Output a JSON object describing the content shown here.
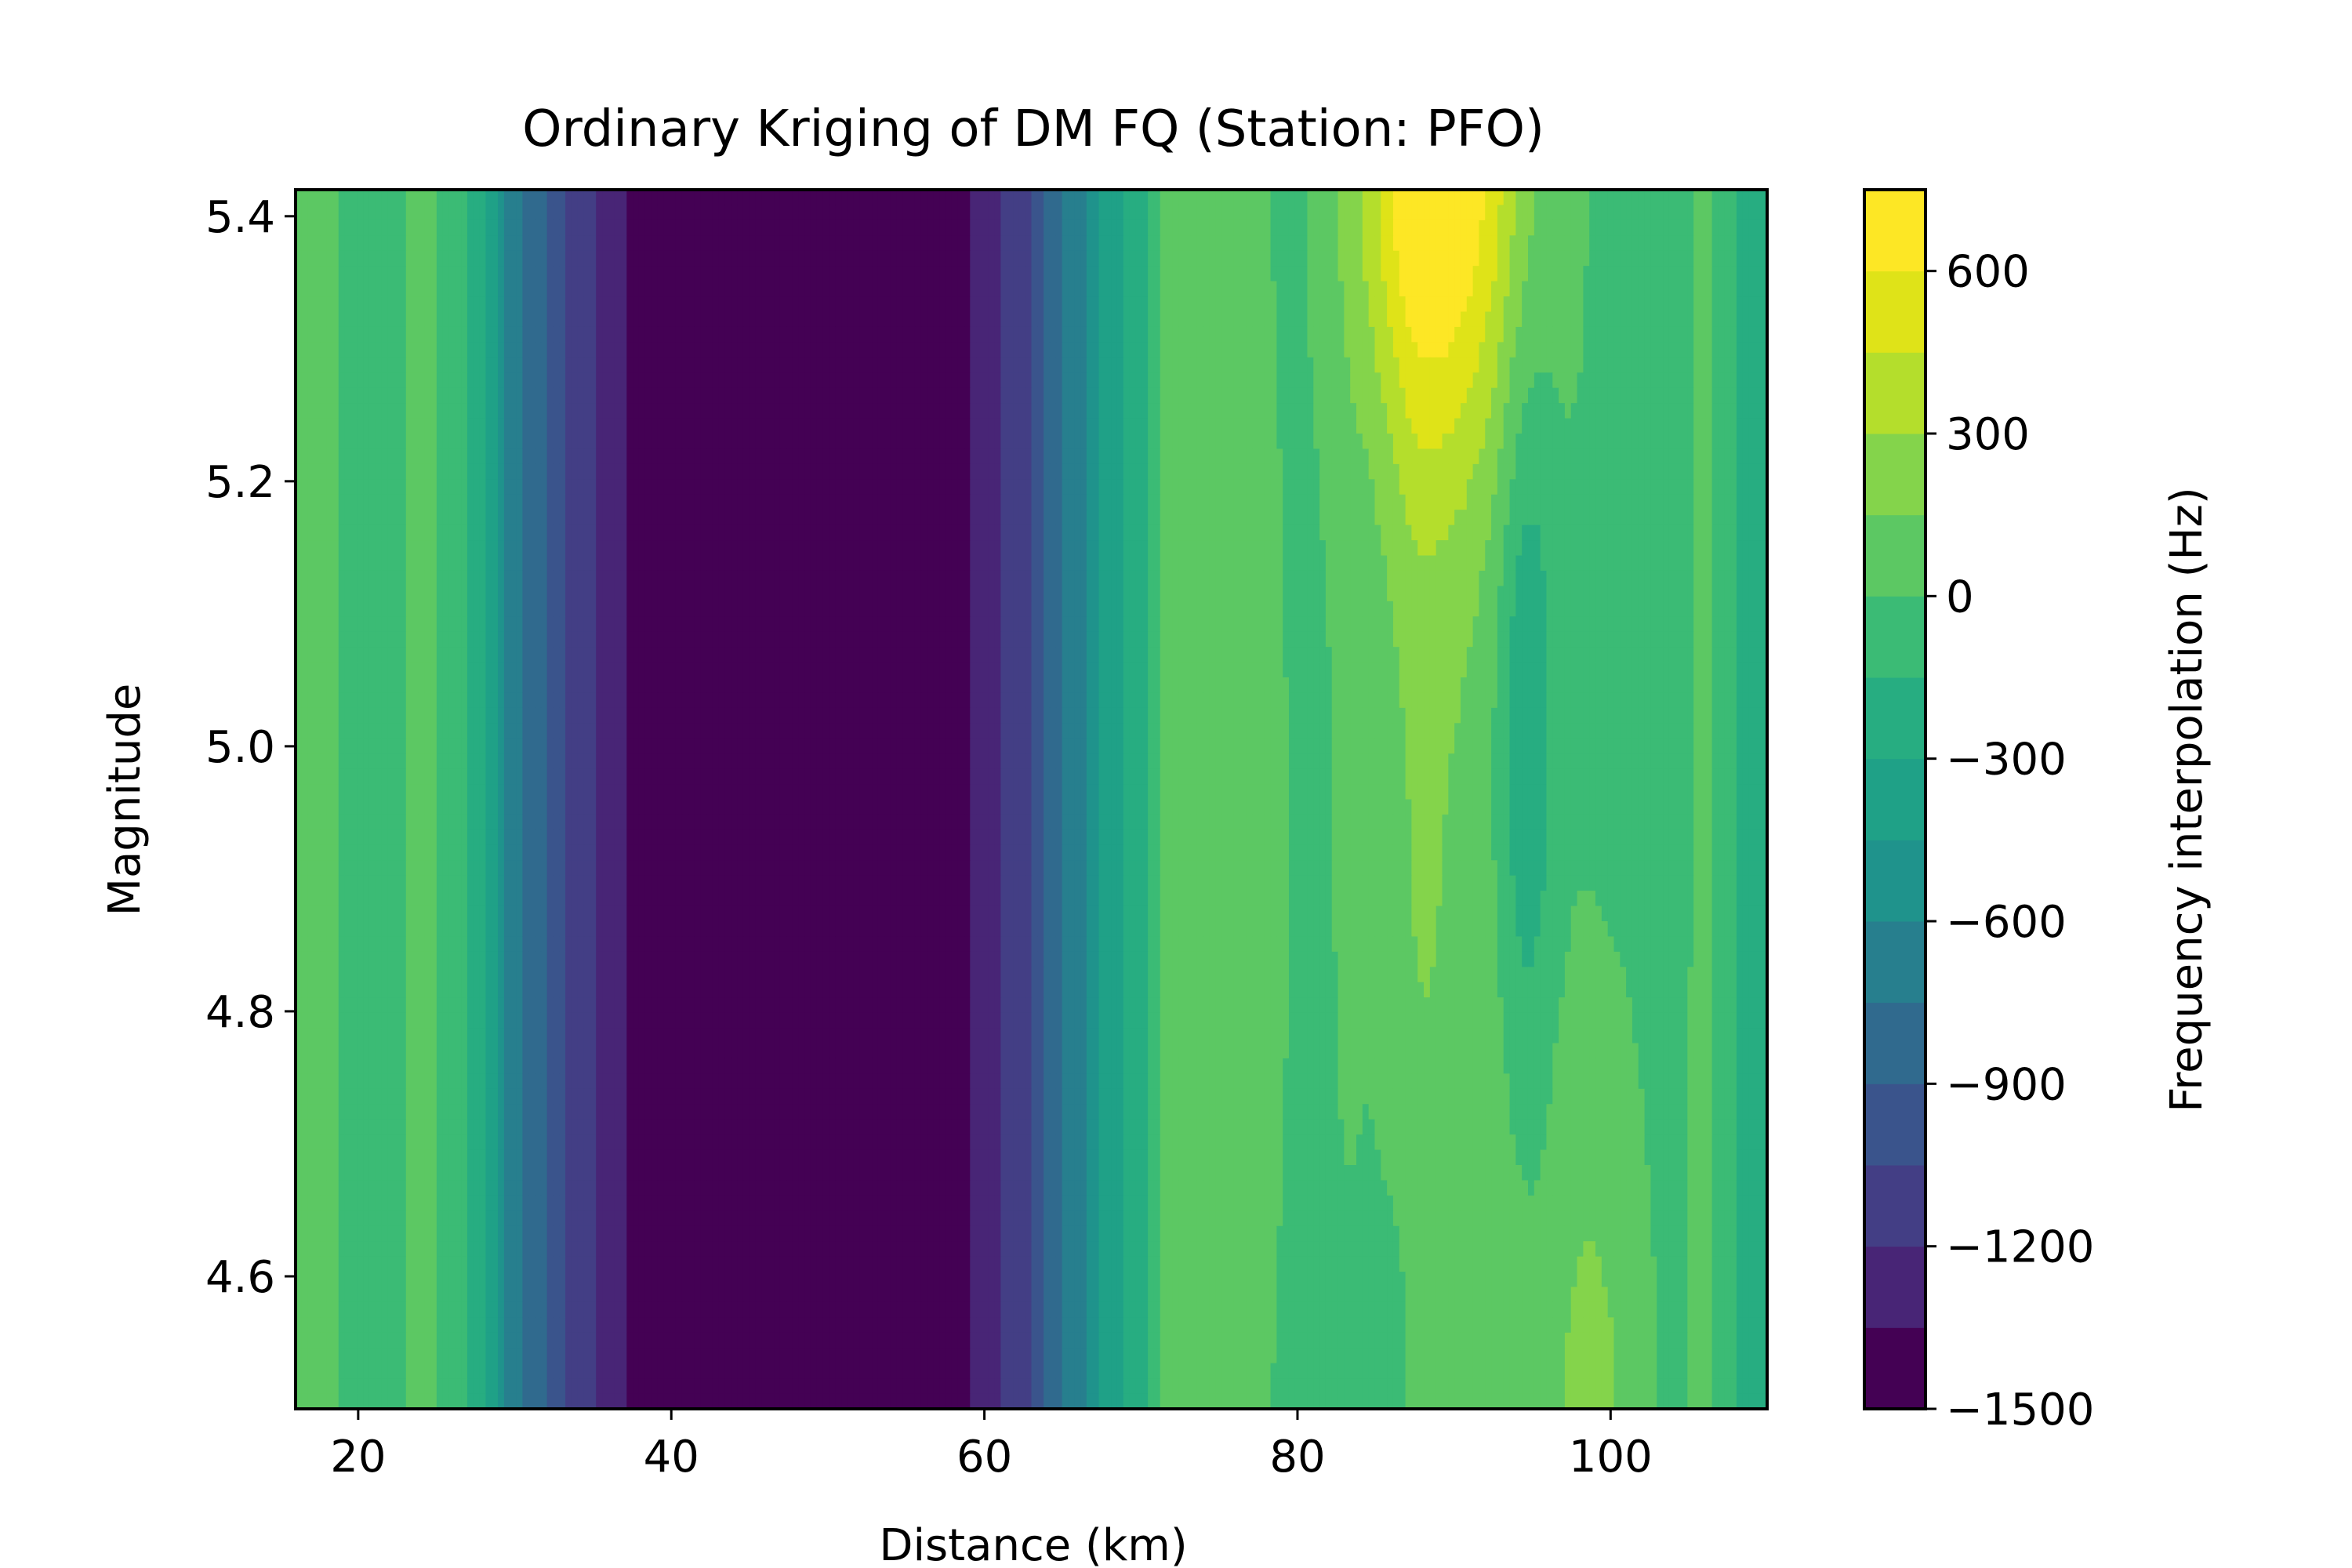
{
  "chart_data": {
    "type": "heatmap",
    "subtype": "filled-contour",
    "title": "Ordinary Kriging of DM FQ (Station: PFO)",
    "xlabel": "Distance (km)",
    "ylabel": "Magnitude",
    "colorbar_label": "Frequency interpolation (Hz)",
    "xlim": [
      16,
      110
    ],
    "ylim": [
      4.5,
      5.42
    ],
    "x_ticks": [
      20,
      40,
      60,
      80,
      100
    ],
    "y_ticks": [
      4.6,
      4.8,
      5.0,
      5.2,
      5.4
    ],
    "x_tick_labels": [
      "20",
      "40",
      "60",
      "80",
      "100"
    ],
    "y_tick_labels": [
      "4.6",
      "4.8",
      "5.0",
      "5.2",
      "5.4"
    ],
    "colorbar_range": [
      -1500,
      750
    ],
    "colorbar_ticks": [
      -1500,
      -1200,
      -900,
      -600,
      -300,
      0,
      300,
      600
    ],
    "colorbar_tick_labels": [
      "−1500",
      "−1200",
      "−900",
      "−600",
      "−300",
      "0",
      "300",
      "600"
    ],
    "levels": [
      -1500,
      -1350,
      -1200,
      -1050,
      -900,
      -750,
      -600,
      -450,
      -300,
      -150,
      0,
      150,
      300,
      450,
      600,
      750
    ],
    "colormap": [
      "#440154",
      "#482576",
      "#433e85",
      "#3a548c",
      "#306a8e",
      "#277f8e",
      "#1f938c",
      "#1fa187",
      "#27ad81",
      "#3bbb75",
      "#5cc863",
      "#84d44b",
      "#b4de2c",
      "#dfe318",
      "#fde725"
    ],
    "profile_distance_km": [
      16,
      18,
      20,
      22,
      24,
      26,
      28,
      30,
      32,
      34,
      36,
      38,
      40,
      50,
      58,
      60,
      62,
      64,
      66,
      68,
      70,
      72,
      76,
      80,
      84,
      88,
      92,
      96,
      100,
      104,
      106,
      108,
      110
    ],
    "profile_value_hz": [
      80,
      20,
      -50,
      -100,
      60,
      -60,
      -280,
      -700,
      -900,
      -1100,
      -1250,
      -1400,
      -1480,
      -1490,
      -1450,
      -1300,
      -1150,
      -900,
      -650,
      -400,
      -200,
      40,
      0,
      -80,
      10,
      160,
      100,
      0,
      -40,
      -60,
      40,
      -150,
      -200
    ],
    "notes": "Value field is predominantly a function of distance with local features: a peak near 88 km at the top (~700 Hz), a low trough near 94 km around magnitude 5.0, and a raised lobe near 99 km at the bottom."
  }
}
